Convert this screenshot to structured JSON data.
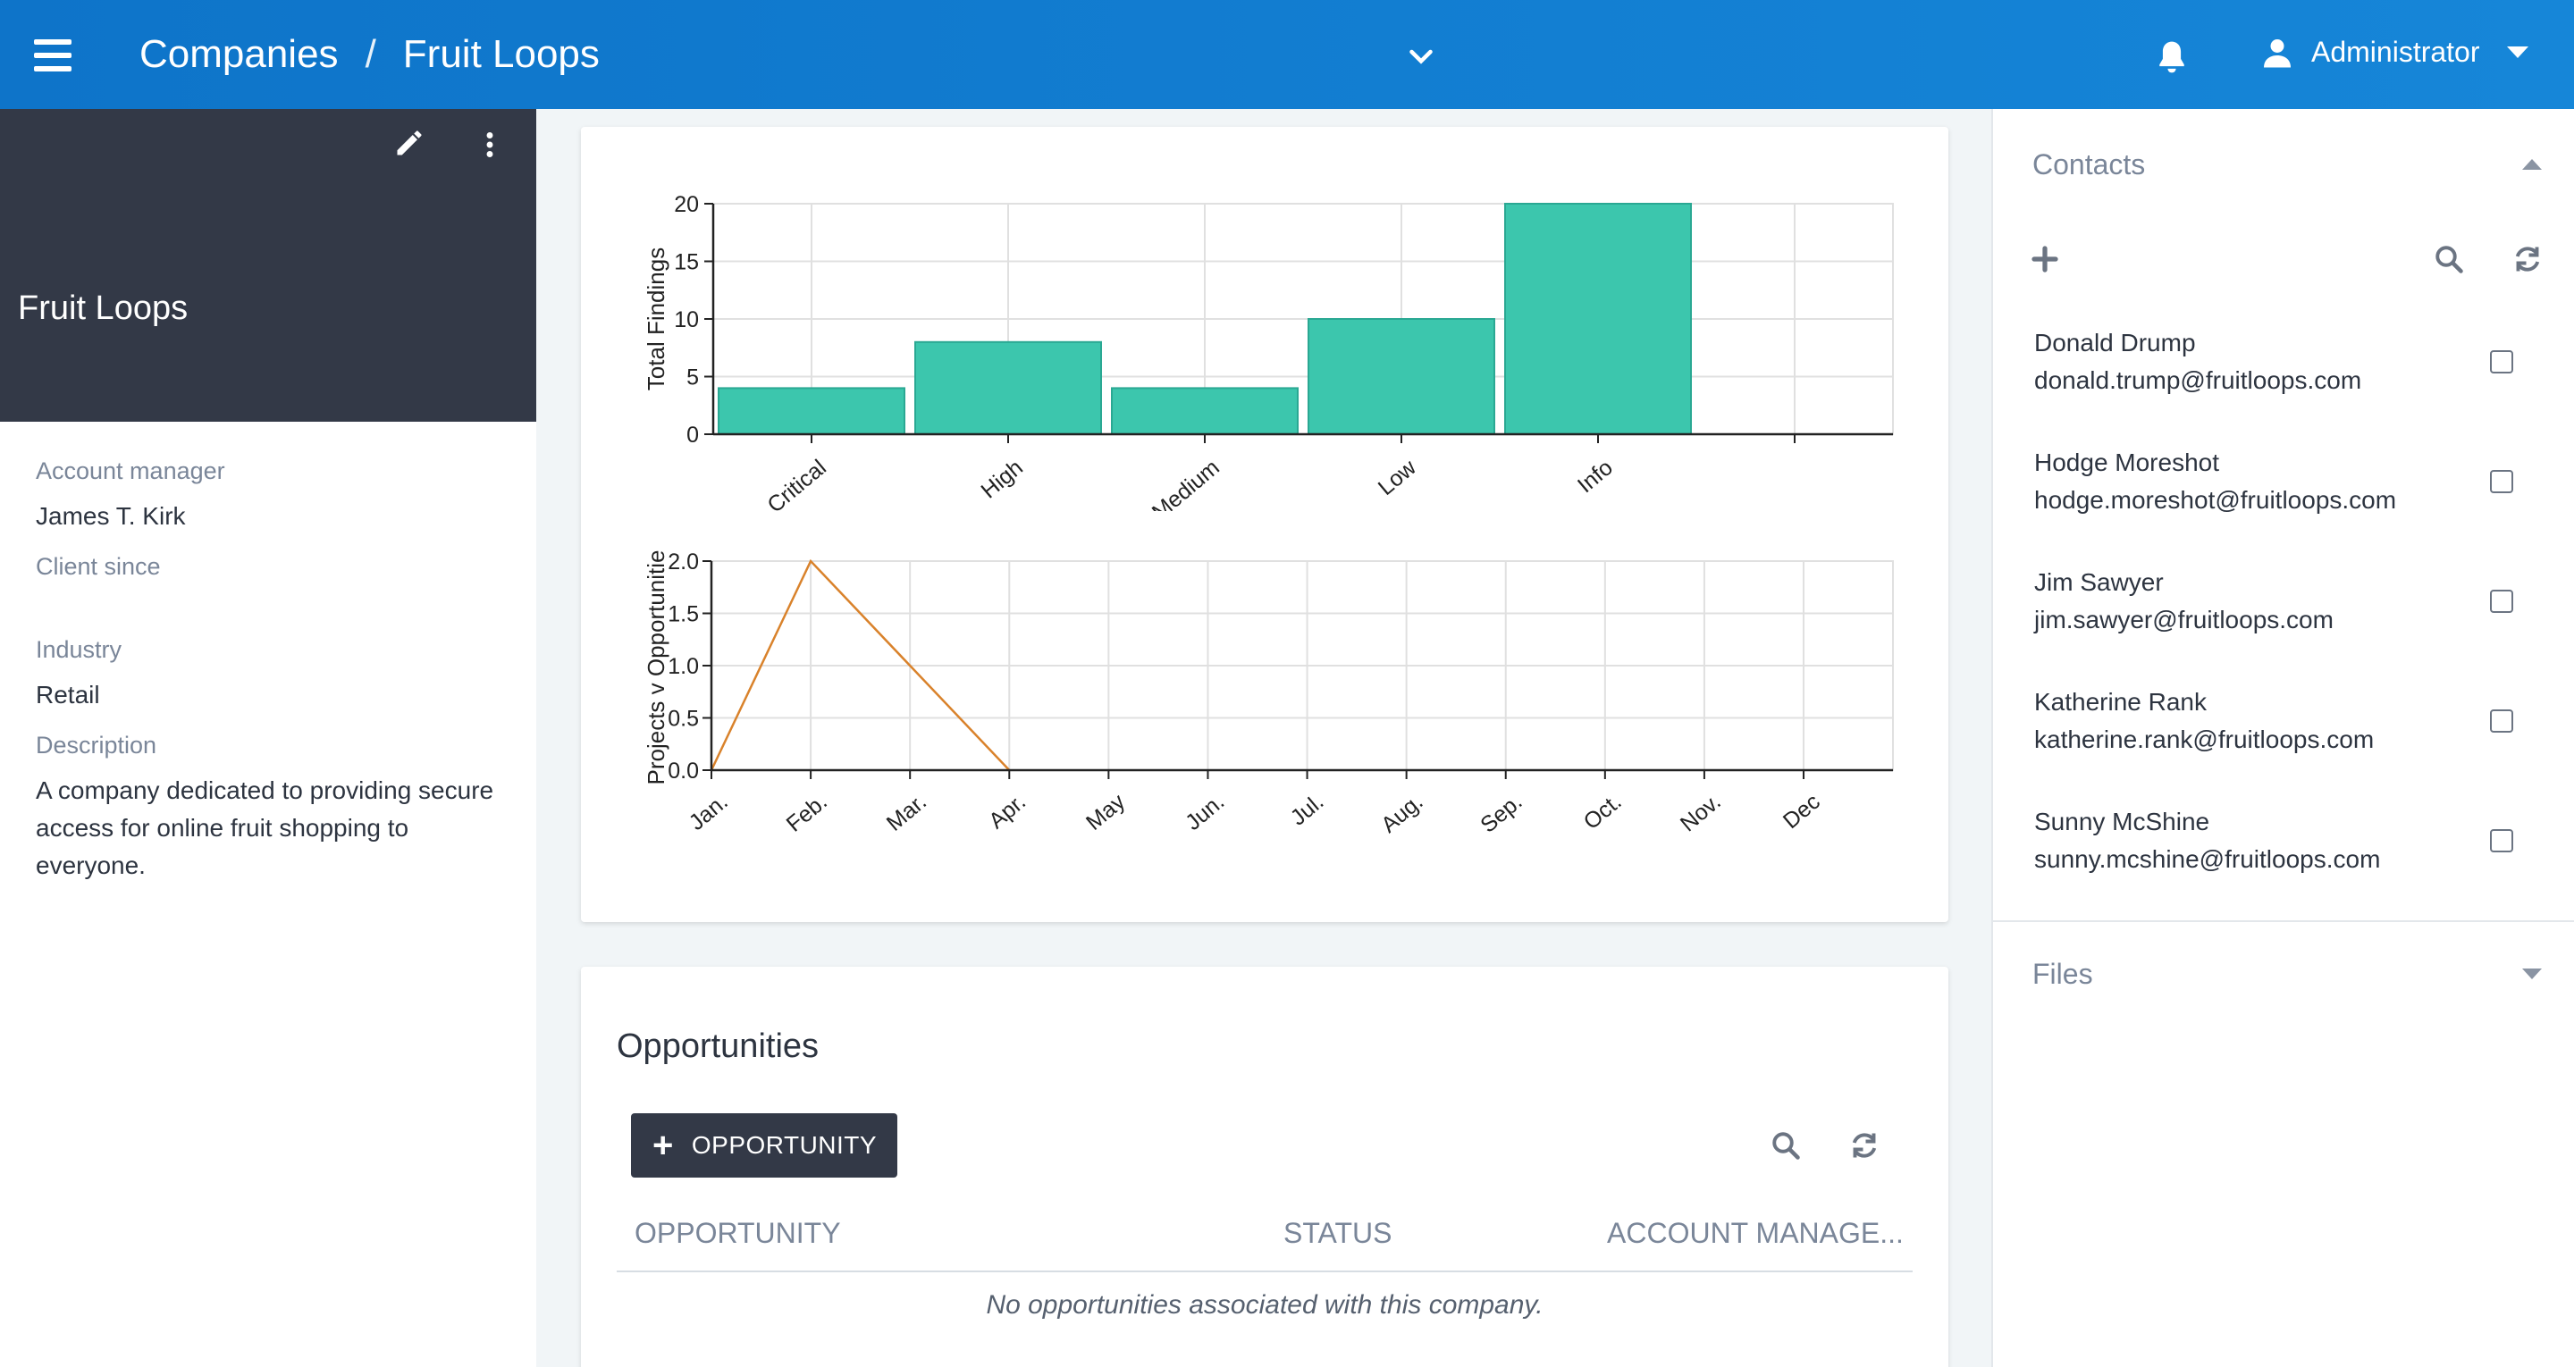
{
  "header": {
    "breadcrumb": [
      "Companies",
      "Fruit Loops"
    ],
    "breadcrumb_separator": "/",
    "user_name": "Administrator",
    "accent_color": "#1283d6"
  },
  "company": {
    "name": "Fruit Loops",
    "fields": [
      {
        "label": "Account manager",
        "value": "James T. Kirk"
      },
      {
        "label": "Client since",
        "value": ""
      },
      {
        "label": "Industry",
        "value": "Retail"
      },
      {
        "label": "Description",
        "value": "A company dedicated to providing secure access for online fruit shopping to everyone."
      }
    ]
  },
  "chart_data": [
    {
      "type": "bar",
      "title": "",
      "xlabel": "",
      "ylabel": "Total Findings",
      "categories": [
        "Critical",
        "High",
        "Medium",
        "Low",
        "Info",
        ""
      ],
      "values": [
        4,
        8,
        4,
        10,
        20,
        null
      ],
      "ylim": [
        0,
        20
      ],
      "yticks": [
        0,
        5,
        10,
        15,
        20
      ],
      "grid": true,
      "color": "#3cc6ad"
    },
    {
      "type": "line",
      "title": "",
      "xlabel": "",
      "ylabel": "Projects v Opportunitie",
      "categories": [
        "Jan.",
        "Feb.",
        "Mar.",
        "Apr.",
        "May",
        "Jun.",
        "Jul.",
        "Aug.",
        "Sep.",
        "Oct.",
        "Nov.",
        "Dec"
      ],
      "values": [
        0,
        2,
        1,
        0,
        null,
        null,
        null,
        null,
        null,
        null,
        null,
        null
      ],
      "ylim": [
        0,
        2
      ],
      "yticks": [
        "0.0",
        "0.5",
        "1.0",
        "1.5",
        "2.0"
      ],
      "grid": true,
      "color": "#d9822b"
    }
  ],
  "opportunities": {
    "title": "Opportunities",
    "add_button_label": "OPPORTUNITY",
    "columns": [
      "OPPORTUNITY",
      "STATUS",
      "ACCOUNT MANAGE..."
    ],
    "empty_message": "No opportunities associated with this company."
  },
  "contacts": {
    "title": "Contacts",
    "items": [
      {
        "name": "Donald Drump",
        "email": "donald.trump@fruitloops.com"
      },
      {
        "name": "Hodge Moreshot",
        "email": "hodge.moreshot@fruitloops.com"
      },
      {
        "name": "Jim Sawyer",
        "email": "jim.sawyer@fruitloops.com"
      },
      {
        "name": "Katherine Rank",
        "email": "katherine.rank@fruitloops.com"
      },
      {
        "name": "Sunny McShine",
        "email": "sunny.mcshine@fruitloops.com"
      }
    ]
  },
  "files": {
    "title": "Files"
  },
  "icons": {
    "menu": "hamburger-icon",
    "expand": "chevron-down-icon",
    "notifications": "bell-icon",
    "user": "user-icon",
    "edit": "pencil-icon",
    "more": "kebab-icon",
    "add": "plus-icon",
    "search": "search-icon",
    "refresh": "refresh-icon"
  }
}
